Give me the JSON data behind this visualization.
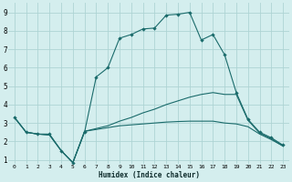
{
  "xlabel": "Humidex (Indice chaleur)",
  "bg_color": "#d4eeee",
  "grid_color": "#aed4d4",
  "line_color": "#1a6b6b",
  "xlim": [
    -0.5,
    23.5
  ],
  "ylim": [
    0.8,
    9.5
  ],
  "xticks": [
    0,
    1,
    2,
    3,
    4,
    5,
    6,
    7,
    8,
    9,
    10,
    11,
    12,
    13,
    14,
    15,
    16,
    17,
    18,
    19,
    20,
    21,
    22,
    23
  ],
  "yticks": [
    1,
    2,
    3,
    4,
    5,
    6,
    7,
    8,
    9
  ],
  "series": [
    {
      "x": [
        0,
        1,
        2,
        3,
        4,
        5,
        6,
        7,
        8,
        9,
        10,
        11,
        12,
        13,
        14,
        15,
        16,
        17,
        18,
        19,
        20,
        21,
        22,
        23
      ],
      "y": [
        3.3,
        2.5,
        2.4,
        2.4,
        1.5,
        0.85,
        2.5,
        5.5,
        6.0,
        7.6,
        7.8,
        8.1,
        8.15,
        8.85,
        8.9,
        9.0,
        7.5,
        7.8,
        6.7,
        4.65,
        3.2,
        2.5,
        2.2,
        1.8
      ],
      "marker": true
    },
    {
      "x": [
        0,
        1,
        2,
        3,
        4,
        5,
        6,
        7,
        8,
        9,
        10,
        11,
        12,
        13,
        14,
        15,
        16,
        17,
        18,
        19,
        20,
        21,
        22,
        23
      ],
      "y": [
        3.3,
        2.5,
        2.4,
        2.35,
        1.5,
        0.85,
        2.55,
        2.7,
        2.85,
        3.1,
        3.3,
        3.55,
        3.75,
        4.0,
        4.2,
        4.4,
        4.55,
        4.65,
        4.55,
        4.55,
        3.15,
        2.45,
        2.15,
        1.75
      ],
      "marker": false
    },
    {
      "x": [
        0,
        1,
        2,
        3,
        4,
        5,
        6,
        7,
        8,
        9,
        10,
        11,
        12,
        13,
        14,
        15,
        16,
        17,
        18,
        19,
        20,
        21,
        22,
        23
      ],
      "y": [
        3.3,
        2.5,
        2.4,
        2.35,
        1.5,
        0.85,
        2.55,
        2.65,
        2.75,
        2.85,
        2.9,
        2.95,
        3.0,
        3.05,
        3.08,
        3.1,
        3.1,
        3.1,
        3.0,
        2.95,
        2.8,
        2.4,
        2.1,
        1.75
      ],
      "marker": false
    }
  ]
}
